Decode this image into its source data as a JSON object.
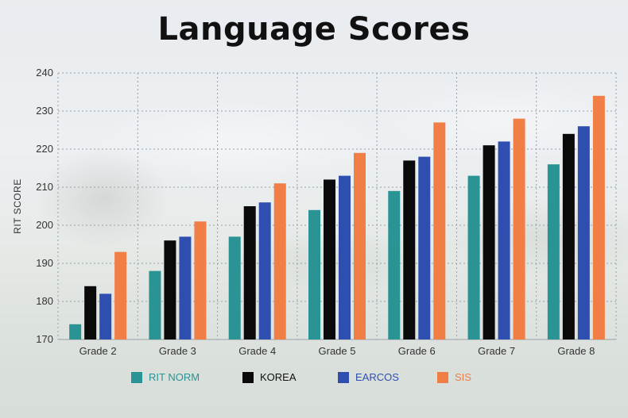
{
  "chart_data": {
    "type": "bar",
    "title": "Language Scores",
    "xlabel": "",
    "ylabel": "RIT SCORE",
    "ylim": [
      170,
      240
    ],
    "yticks": [
      170,
      180,
      190,
      200,
      210,
      220,
      230,
      240
    ],
    "grid": true,
    "legend_position": "bottom",
    "categories": [
      "Grade 2",
      "Grade 3",
      "Grade 4",
      "Grade 5",
      "Grade 6",
      "Grade 7",
      "Grade 8"
    ],
    "series": [
      {
        "name": "RIT NORM",
        "color": "#2a9393",
        "label_color": "#2a9393",
        "values": [
          174,
          188,
          197,
          204,
          209,
          213,
          216
        ]
      },
      {
        "name": "KOREA",
        "color": "#0a0a0a",
        "label_color": "#111111",
        "values": [
          184,
          196,
          205,
          212,
          217,
          221,
          224
        ]
      },
      {
        "name": "EARCOS",
        "color": "#2f4fb0",
        "label_color": "#2f4fb0",
        "values": [
          182,
          197,
          206,
          213,
          218,
          222,
          226
        ]
      },
      {
        "name": "SIS",
        "color": "#f07e45",
        "label_color": "#f07e45",
        "values": [
          193,
          201,
          211,
          219,
          227,
          228,
          234
        ]
      }
    ]
  }
}
